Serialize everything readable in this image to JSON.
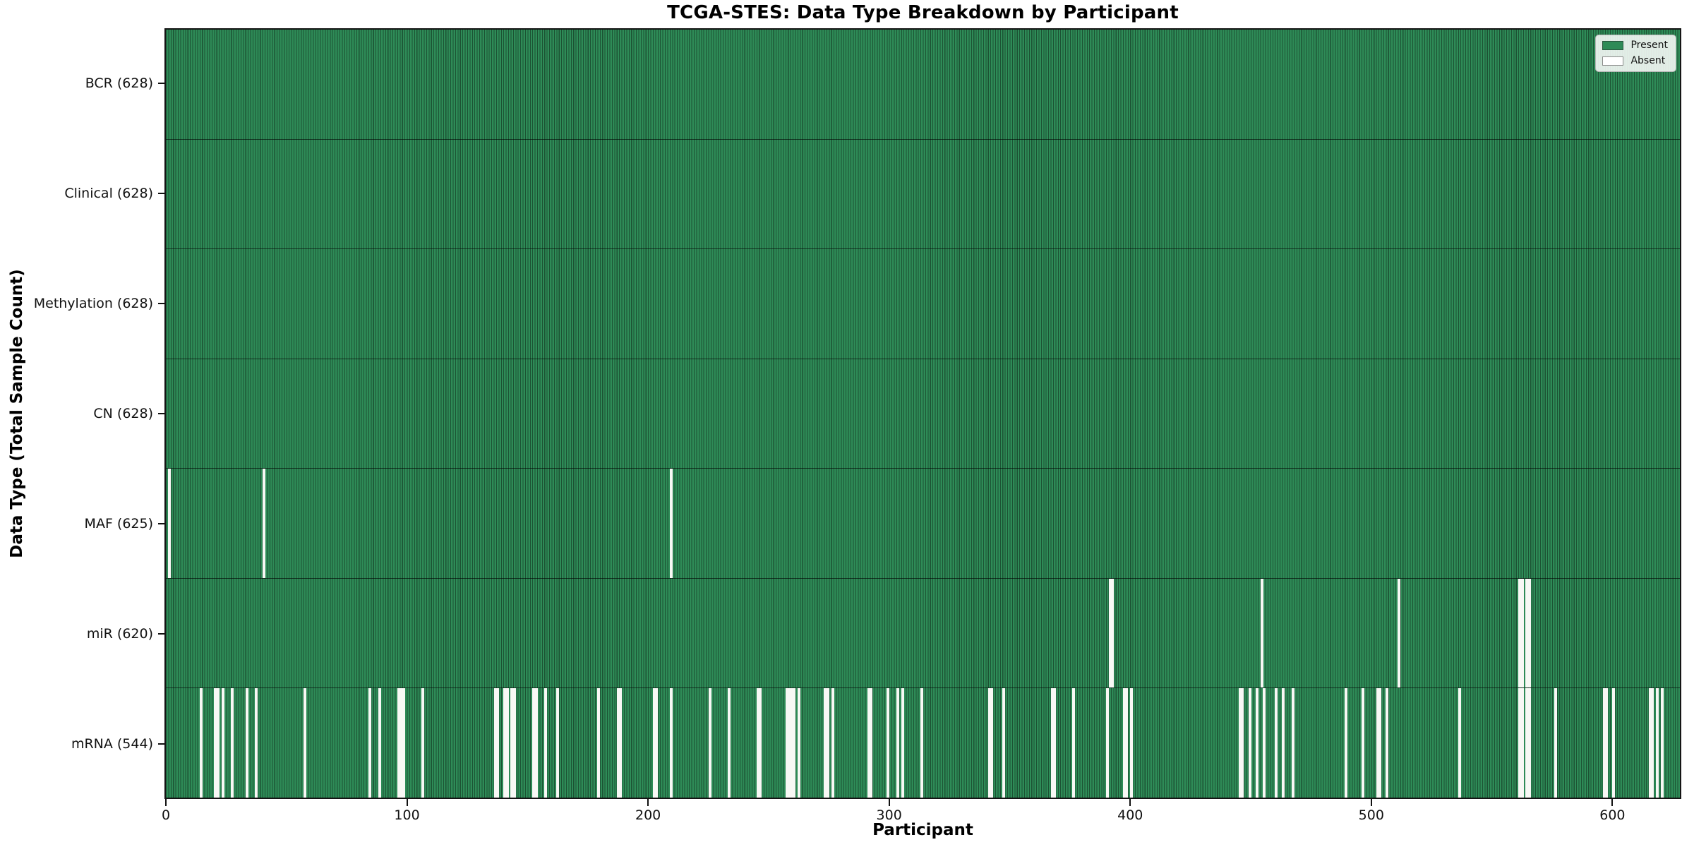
{
  "chart_data": {
    "type": "heatmap",
    "title": "TCGA-STES: Data Type Breakdown by Participant",
    "xlabel": "Participant",
    "ylabel": "Data Type (Total Sample Count)",
    "x_ticks": [
      0,
      100,
      200,
      300,
      400,
      500,
      600
    ],
    "x_range": [
      0,
      628
    ],
    "n_participants": 628,
    "grid": false,
    "legend_position": "upper right",
    "legend_items": [
      {
        "label": "Present",
        "color": "#2e8b57"
      },
      {
        "label": "Absent",
        "color": "#ffffff"
      }
    ],
    "colors": {
      "present": "#2e8b57",
      "present_edge": "#1c5233",
      "absent": "#f8f8f5"
    },
    "rows": [
      {
        "label": "BCR",
        "count": 628,
        "absent": []
      },
      {
        "label": "Clinical",
        "count": 628,
        "absent": []
      },
      {
        "label": "Methylation",
        "count": 628,
        "absent": []
      },
      {
        "label": "CN",
        "count": 628,
        "absent": []
      },
      {
        "label": "MAF",
        "count": 625,
        "absent": [
          1,
          40,
          209
        ]
      },
      {
        "label": "miR",
        "count": 620,
        "absent": [
          391,
          392,
          454,
          511,
          561,
          562,
          564,
          565
        ]
      },
      {
        "label": "mRNA",
        "count": 544,
        "absent": [
          14,
          20,
          21,
          23,
          27,
          33,
          37,
          57,
          84,
          88,
          96,
          97,
          98,
          106,
          136,
          137,
          140,
          141,
          143,
          144,
          152,
          153,
          157,
          162,
          179,
          187,
          188,
          202,
          203,
          209,
          225,
          233,
          245,
          246,
          257,
          258,
          259,
          260,
          262,
          273,
          274,
          276,
          291,
          292,
          299,
          303,
          305,
          313,
          341,
          342,
          347,
          367,
          368,
          376,
          390,
          397,
          398,
          400,
          445,
          446,
          449,
          452,
          455,
          460,
          463,
          467,
          489,
          496,
          502,
          503,
          506,
          536,
          561,
          562,
          564,
          565,
          576,
          596,
          597,
          600,
          615,
          616,
          618,
          620
        ]
      }
    ]
  }
}
